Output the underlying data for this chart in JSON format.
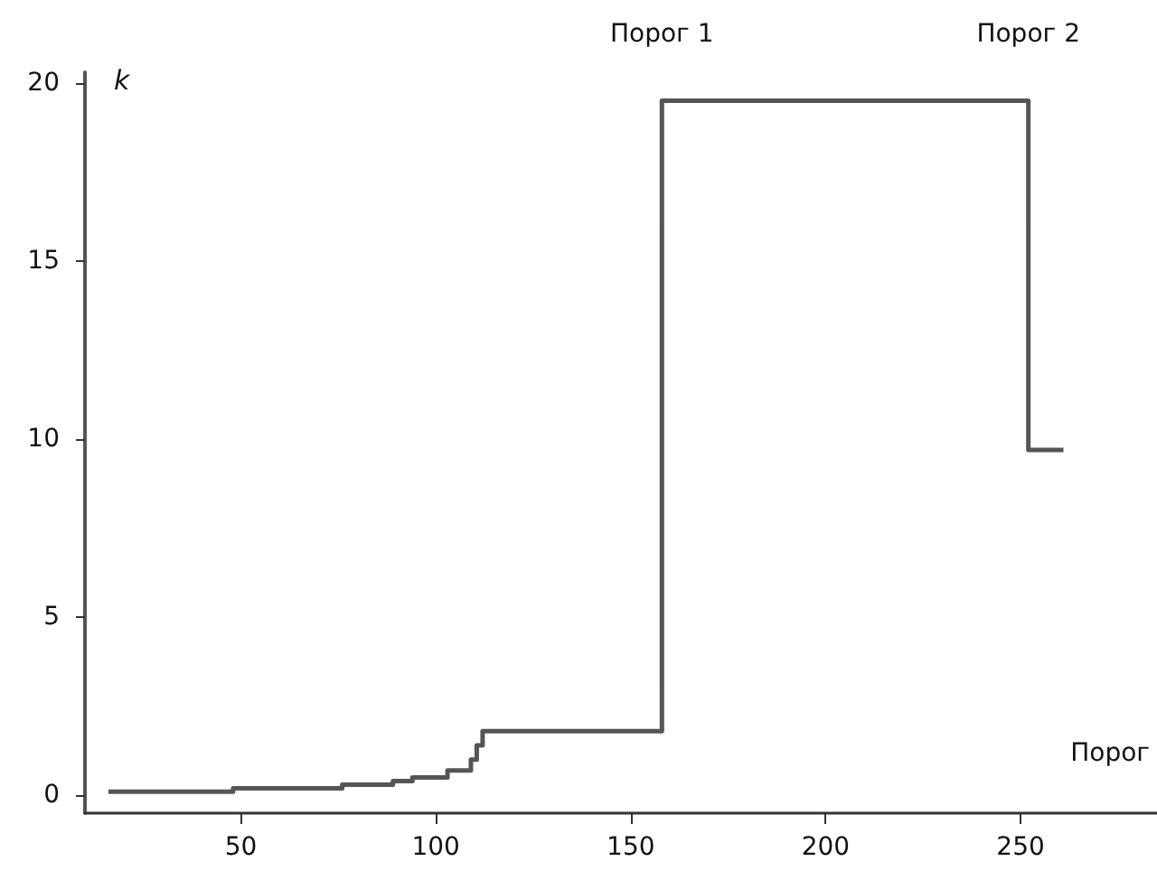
{
  "chart_data": {
    "type": "step",
    "ylabel": "k",
    "x": [
      16,
      48,
      76,
      89,
      94,
      103,
      109,
      110.5,
      112,
      158,
      252,
      261
    ],
    "values": [
      0.1,
      0.2,
      0.3,
      0.4,
      0.5,
      0.7,
      1.0,
      1.4,
      1.8,
      19.5,
      9.7,
      9.7
    ],
    "color": "#555555",
    "xlim": [
      10,
      285
    ],
    "xticks": [
      50,
      100,
      150,
      200,
      250
    ],
    "ylim": [
      -0.5,
      20.3
    ],
    "yticks": [
      0,
      5,
      10,
      15,
      20
    ],
    "grid": false,
    "marker": "none",
    "line_style": "solid",
    "annotations": [
      {
        "text": "Порог 1",
        "x": 158,
        "y": 19.5
      },
      {
        "text": "Порог 2",
        "x": 252,
        "y": 19.5
      },
      "Порог"
    ]
  }
}
